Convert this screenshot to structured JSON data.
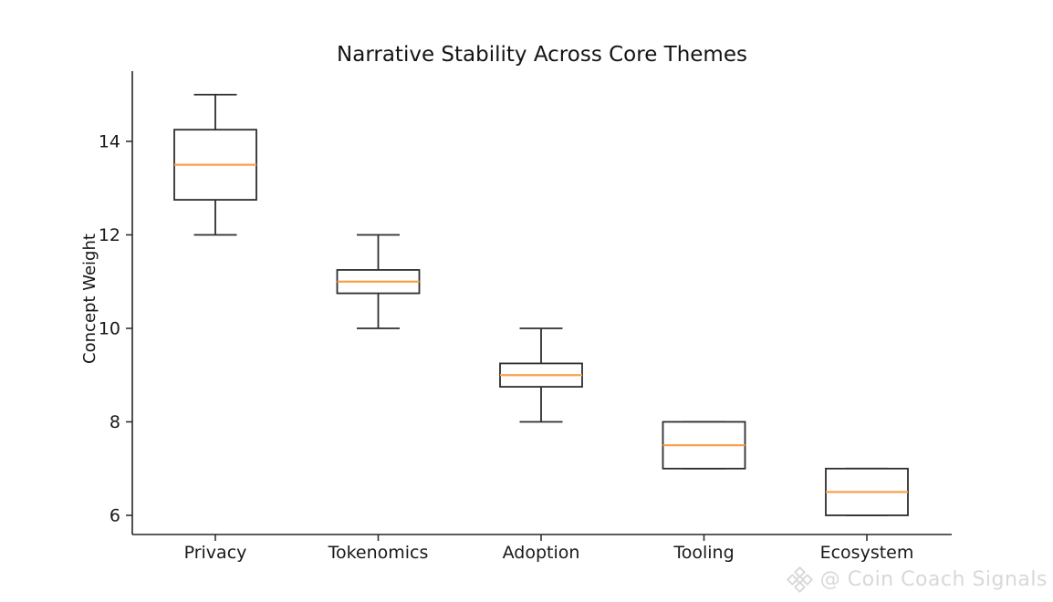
{
  "chart_data": {
    "type": "boxplot",
    "title": "Narrative Stability Across Core Themes",
    "xlabel": "",
    "ylabel": "Concept Weight",
    "categories": [
      "Privacy",
      "Tokenomics",
      "Adoption",
      "Tooling",
      "Ecosystem"
    ],
    "y_ticks": [
      6,
      8,
      10,
      12,
      14
    ],
    "ylim": [
      5.6,
      15.5
    ],
    "grid": false,
    "legend": "none",
    "series": [
      {
        "category": "Privacy",
        "whisker_low": 12,
        "q1": 12.75,
        "median": 13.5,
        "q3": 14.25,
        "whisker_high": 15
      },
      {
        "category": "Tokenomics",
        "whisker_low": 10,
        "q1": 10.75,
        "median": 11,
        "q3": 11.25,
        "whisker_high": 12
      },
      {
        "category": "Adoption",
        "whisker_low": 8,
        "q1": 8.75,
        "median": 9,
        "q3": 9.25,
        "whisker_high": 10
      },
      {
        "category": "Tooling",
        "whisker_low": 7,
        "q1": 7,
        "median": 7.5,
        "q3": 8,
        "whisker_high": 8
      },
      {
        "category": "Ecosystem",
        "whisker_low": 6,
        "q1": 6,
        "median": 6.5,
        "q3": 7,
        "whisker_high": 7
      }
    ],
    "colors": {
      "box_stroke": "#2e2e2e",
      "median": "#f9a04a",
      "spine": "#262626",
      "tick_text": "#191919",
      "background": "#ffffff"
    }
  },
  "watermark": {
    "text": "@ Coin Coach Signals",
    "logo": "coin-diamond-logo",
    "color": "#d8d8d8"
  }
}
